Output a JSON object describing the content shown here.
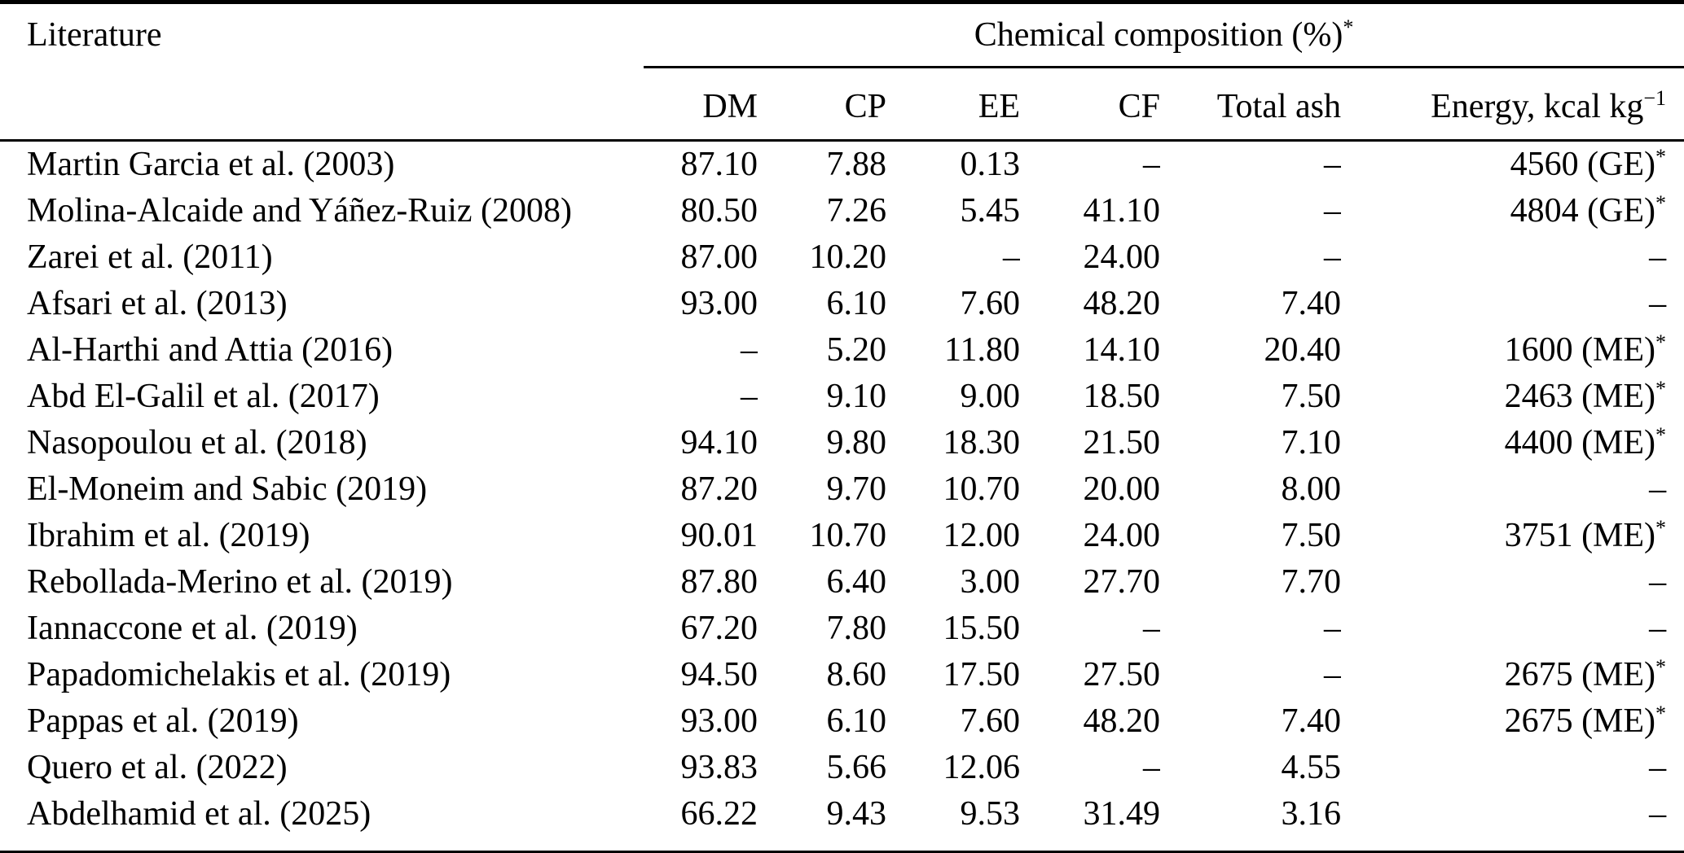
{
  "colors": {
    "background": "#ffffff",
    "text": "#000000",
    "rule": "#000000"
  },
  "table": {
    "corner_header": "Literature",
    "group_header": {
      "text": "Chemical composition (%)",
      "sup": "*"
    },
    "sub_headers": [
      "DM",
      "CP",
      "EE",
      "CF",
      "Total ash"
    ],
    "energy_header": {
      "text": "Energy, kcal kg",
      "sup": "−1"
    },
    "rows": [
      {
        "literature": "Martin Garcia et al. (2003)",
        "dm": "87.10",
        "cp": "7.88",
        "ee": "0.13",
        "cf": "–",
        "ash": "–",
        "energy": "4560 (GE)",
        "energy_sup": "*"
      },
      {
        "literature": "Molina-Alcaide and Yáñez-Ruiz (2008)",
        "dm": "80.50",
        "cp": "7.26",
        "ee": "5.45",
        "cf": "41.10",
        "ash": "–",
        "energy": "4804 (GE)",
        "energy_sup": "*"
      },
      {
        "literature": "Zarei et al. (2011)",
        "dm": "87.00",
        "cp": "10.20",
        "ee": "–",
        "cf": "24.00",
        "ash": "–",
        "energy": "–",
        "energy_sup": ""
      },
      {
        "literature": "Afsari et al. (2013)",
        "dm": "93.00",
        "cp": "6.10",
        "ee": "7.60",
        "cf": "48.20",
        "ash": "7.40",
        "energy": "–",
        "energy_sup": ""
      },
      {
        "literature": "Al-Harthi and Attia (2016)",
        "dm": "–",
        "cp": "5.20",
        "ee": "11.80",
        "cf": "14.10",
        "ash": "20.40",
        "energy": "1600 (ME)",
        "energy_sup": "*"
      },
      {
        "literature": "Abd El-Galil et al. (2017)",
        "dm": "–",
        "cp": "9.10",
        "ee": "9.00",
        "cf": "18.50",
        "ash": "7.50",
        "energy": "2463 (ME)",
        "energy_sup": "*"
      },
      {
        "literature": "Nasopoulou et al. (2018)",
        "dm": "94.10",
        "cp": "9.80",
        "ee": "18.30",
        "cf": "21.50",
        "ash": "7.10",
        "energy": "4400 (ME)",
        "energy_sup": "*"
      },
      {
        "literature": "El-Moneim and Sabic (2019)",
        "dm": "87.20",
        "cp": "9.70",
        "ee": "10.70",
        "cf": "20.00",
        "ash": "8.00",
        "energy": "–",
        "energy_sup": ""
      },
      {
        "literature": "Ibrahim et al. (2019)",
        "dm": "90.01",
        "cp": "10.70",
        "ee": "12.00",
        "cf": "24.00",
        "ash": "7.50",
        "energy": "3751 (ME)",
        "energy_sup": "*"
      },
      {
        "literature": "Rebollada-Merino et al. (2019)",
        "dm": "87.80",
        "cp": "6.40",
        "ee": "3.00",
        "cf": "27.70",
        "ash": "7.70",
        "energy": "–",
        "energy_sup": ""
      },
      {
        "literature": "Iannaccone et al. (2019)",
        "dm": "67.20",
        "cp": "7.80",
        "ee": "15.50",
        "cf": "–",
        "ash": "–",
        "energy": "–",
        "energy_sup": ""
      },
      {
        "literature": "Papadomichelakis et al. (2019)",
        "dm": "94.50",
        "cp": "8.60",
        "ee": "17.50",
        "cf": "27.50",
        "ash": "–",
        "energy": "2675 (ME)",
        "energy_sup": "*"
      },
      {
        "literature": "Pappas et al. (2019)",
        "dm": "93.00",
        "cp": "6.10",
        "ee": "7.60",
        "cf": "48.20",
        "ash": "7.40",
        "energy": "2675 (ME)",
        "energy_sup": "*"
      },
      {
        "literature": "Quero et al. (2022)",
        "dm": "93.83",
        "cp": "5.66",
        "ee": "12.06",
        "cf": "–",
        "ash": "4.55",
        "energy": "–",
        "energy_sup": ""
      },
      {
        "literature": "Abdelhamid et al. (2025)",
        "dm": "66.22",
        "cp": "9.43",
        "ee": "9.53",
        "cf": "31.49",
        "ash": "3.16",
        "energy": "–",
        "energy_sup": ""
      }
    ]
  }
}
